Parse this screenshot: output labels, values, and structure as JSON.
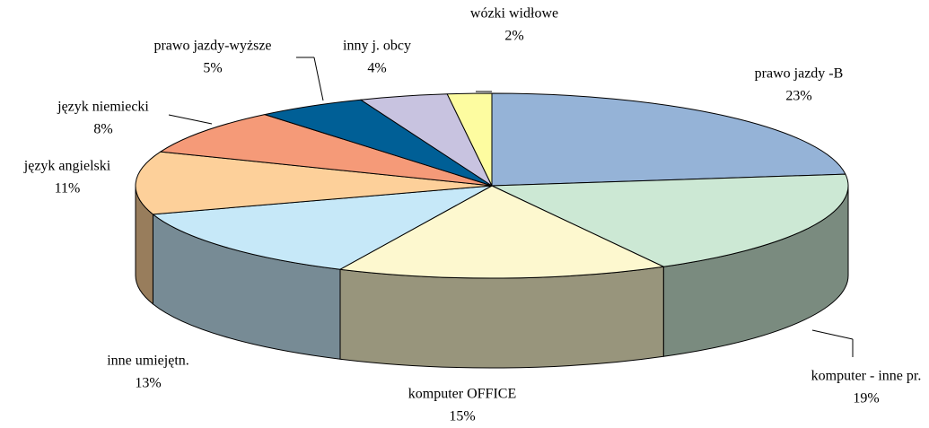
{
  "chart_data": {
    "type": "pie",
    "categories": [
      "prawo jazdy -B",
      "komputer - inne pr.",
      "komputer OFFICE",
      "inne umiejętn.",
      "język angielski",
      "język niemiecki",
      "prawo jazdy-wyższe",
      "inny j. obcy",
      "wózki widłowe"
    ],
    "values": [
      23,
      19,
      15,
      13,
      11,
      8,
      5,
      4,
      2
    ],
    "value_labels": [
      "23%",
      "19%",
      "15%",
      "13%",
      "11%",
      "8%",
      "5%",
      "4%",
      "2%"
    ],
    "colors": [
      "#95b3d7",
      "#cce8d4",
      "#fdf8cf",
      "#c6e8f8",
      "#fdd09a",
      "#f59a78",
      "#005f96",
      "#c8c3e0",
      "#fdfca0"
    ]
  }
}
